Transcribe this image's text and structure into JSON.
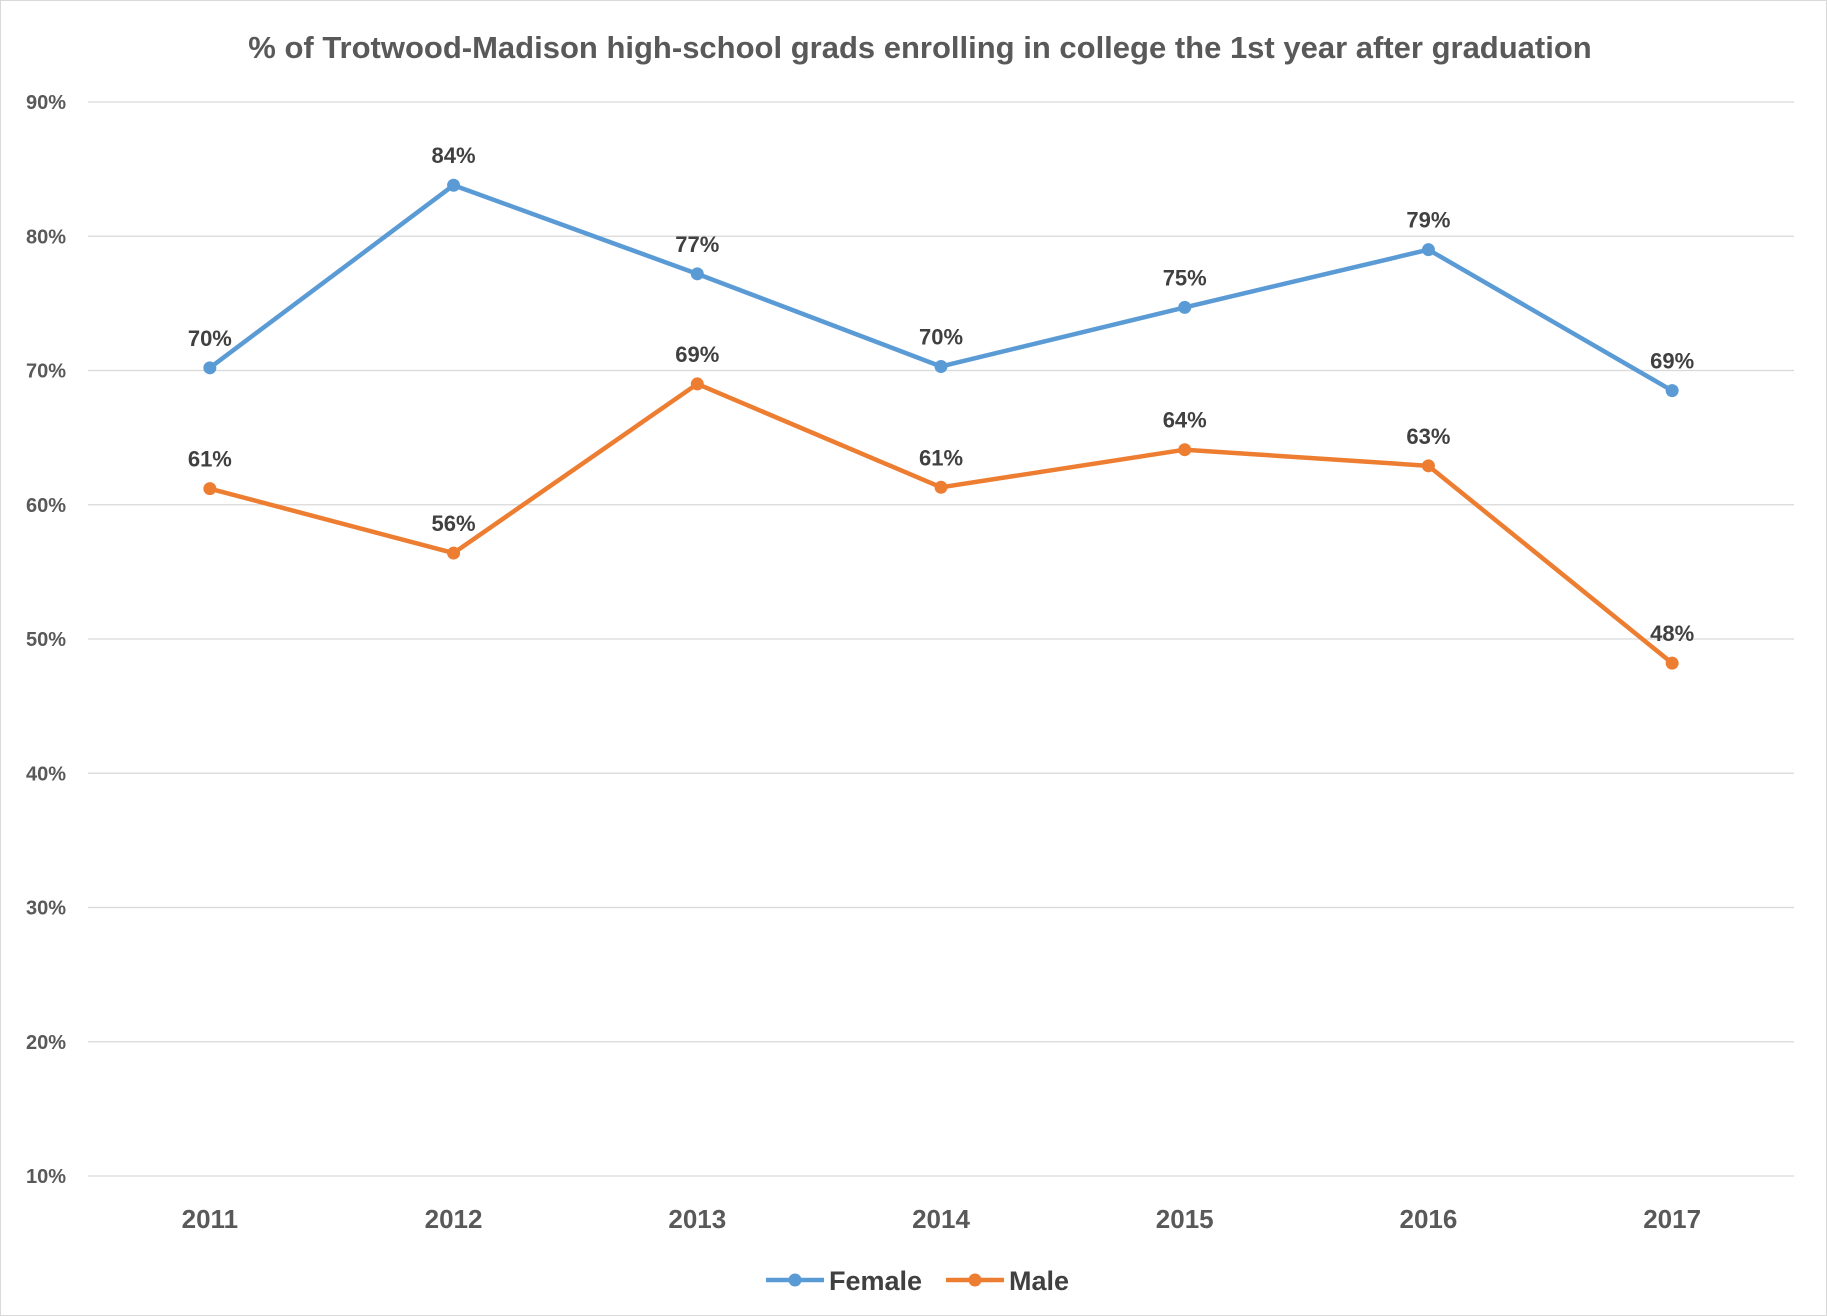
{
  "chart_data": {
    "type": "line",
    "title": "% of Trotwood-Madison high-school grads enrolling in college the 1st year after graduation",
    "xlabel": "",
    "ylabel": "",
    "categories": [
      "2011",
      "2012",
      "2013",
      "2014",
      "2015",
      "2016",
      "2017"
    ],
    "ylim": [
      10,
      90
    ],
    "yticks": [
      "10%",
      "20%",
      "30%",
      "40%",
      "50%",
      "60%",
      "70%",
      "80%",
      "90%"
    ],
    "grid": true,
    "legend_position": "bottom",
    "series": [
      {
        "name": "Female",
        "color": "#5b9bd5",
        "values": [
          70.2,
          83.8,
          77.2,
          70.3,
          74.7,
          79.0,
          68.5
        ],
        "labels": [
          "70%",
          "84%",
          "77%",
          "70%",
          "75%",
          "79%",
          "69%"
        ]
      },
      {
        "name": "Male",
        "color": "#ed7d31",
        "values": [
          61.2,
          56.4,
          69.0,
          61.3,
          64.1,
          62.9,
          48.2
        ],
        "labels": [
          "61%",
          "56%",
          "69%",
          "61%",
          "64%",
          "63%",
          "48%"
        ]
      }
    ]
  }
}
